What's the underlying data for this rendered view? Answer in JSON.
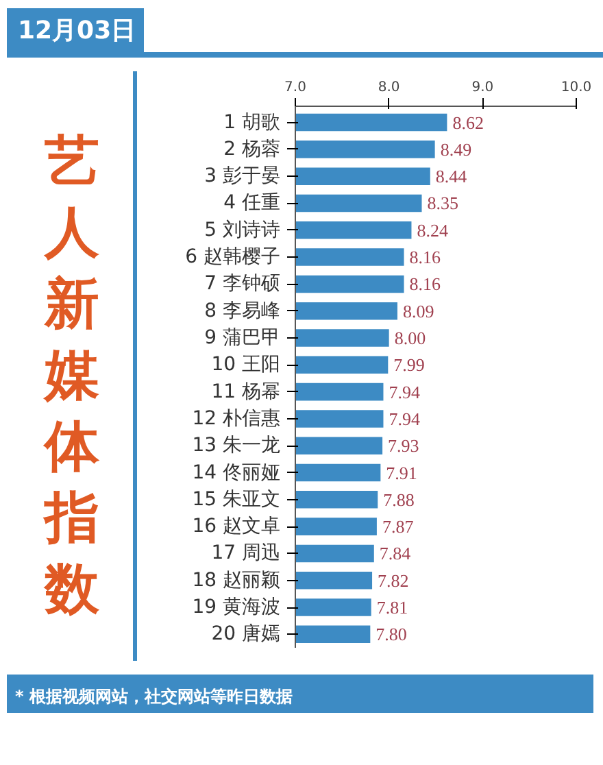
{
  "chart_data": {
    "type": "bar",
    "orientation": "horizontal",
    "title": "艺人新媒体指数",
    "subtitle": "12月03日",
    "categories": [
      "1 胡歌",
      "2 杨蓉",
      "3 彭于晏",
      "4 任重",
      "5 刘诗诗",
      "6 赵韩樱子",
      "7 李钟硕",
      "8 李易峰",
      "9 蒲巴甲",
      "10 王阳",
      "11 杨幂",
      "12 朴信惠",
      "13 朱一龙",
      "14 佟丽娅",
      "15 朱亚文",
      "16 赵文卓",
      "17 周迅",
      "18 赵丽颖",
      "19 黄海波",
      "20 唐嫣"
    ],
    "values": [
      8.62,
      8.49,
      8.44,
      8.35,
      8.24,
      8.16,
      8.16,
      8.09,
      8.0,
      7.99,
      7.94,
      7.94,
      7.93,
      7.91,
      7.88,
      7.87,
      7.84,
      7.82,
      7.81,
      7.8
    ],
    "color": "#3d8bc4",
    "xlim": [
      7.0,
      10.0
    ],
    "xticks": [
      {
        "value": 7,
        "label": "7.0"
      },
      {
        "value": 8,
        "label": "8.0"
      },
      {
        "value": 9,
        "label": "9.0"
      },
      {
        "value": 10,
        "label": "10.0"
      }
    ],
    "value_labels": [
      "8.62",
      "8.49",
      "8.44",
      "8.35",
      "8.24",
      "8.16",
      "8.16",
      "8.09",
      "8.00",
      "7.99",
      "7.94",
      "7.94",
      "7.93",
      "7.91",
      "7.88",
      "7.87",
      "7.84",
      "7.82",
      "7.81",
      "7.80"
    ],
    "grid": false,
    "annotations": [
      "* 根据视频网站，社交网站等昨日数据"
    ]
  }
}
